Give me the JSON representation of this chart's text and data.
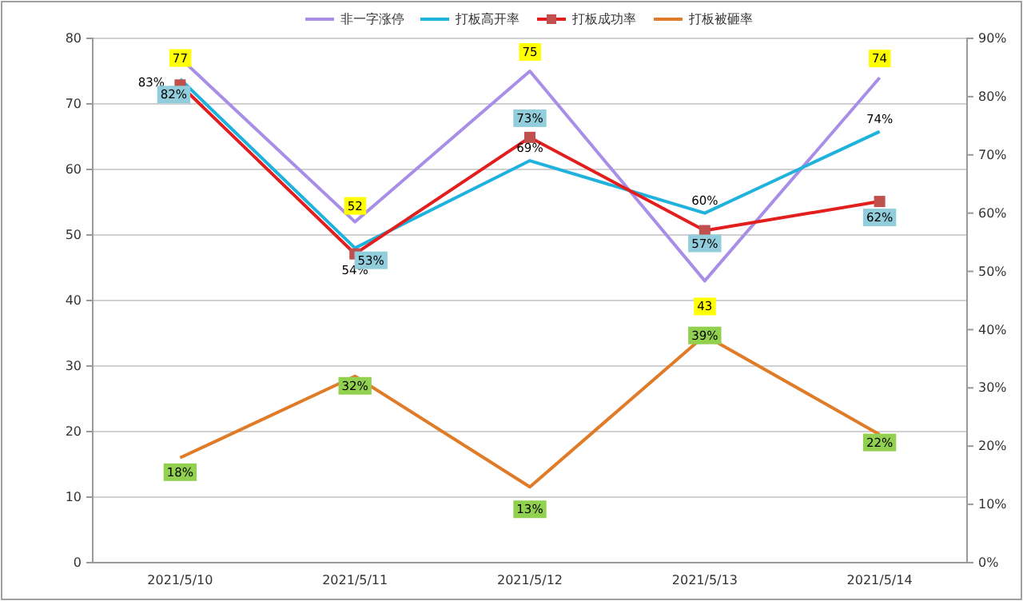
{
  "chart_data": {
    "type": "line",
    "categories": [
      "2021/5/10",
      "2021/5/11",
      "2021/5/12",
      "2021/5/13",
      "2021/5/14"
    ],
    "series": [
      {
        "name": "非一字涨停",
        "color": "#a98ee8",
        "values": [
          77,
          52,
          75,
          43,
          74
        ],
        "value_labels": [
          "77",
          "52",
          "75",
          "43",
          "74"
        ]
      },
      {
        "name": "打板高开率",
        "color": "#1fb2dc",
        "axis": "y2",
        "values": [
          83,
          54,
          69,
          60,
          74
        ],
        "value_labels": [
          "83%",
          "54%",
          "69%",
          "60%",
          "74%"
        ]
      },
      {
        "name": "打板成功率",
        "color": "#e31e1e",
        "axis": "y2",
        "marker": "square",
        "values": [
          82,
          53,
          73,
          57,
          62
        ],
        "value_labels": [
          "82%",
          "53%",
          "73%",
          "57%",
          "62%"
        ]
      },
      {
        "name": "打板被砸率",
        "color": "#e07b28",
        "axis": "y2",
        "values": [
          18,
          32,
          13,
          39,
          22
        ],
        "value_labels": [
          "18%",
          "32%",
          "13%",
          "39%",
          "22%"
        ]
      }
    ],
    "ylim": [
      0,
      80
    ],
    "yticks": [
      0,
      10,
      20,
      30,
      40,
      50,
      60,
      70,
      80
    ],
    "y2lim": [
      0,
      90
    ],
    "y2ticks": [
      {
        "value": 0,
        "label": "0%"
      },
      {
        "value": 10,
        "label": "10%"
      },
      {
        "value": 20,
        "label": "20%"
      },
      {
        "value": 30,
        "label": "30%"
      },
      {
        "value": 40,
        "label": "40%"
      },
      {
        "value": 50,
        "label": "50%"
      },
      {
        "value": 60,
        "label": "60%"
      },
      {
        "value": 70,
        "label": "70%"
      },
      {
        "value": 80,
        "label": "80%"
      },
      {
        "value": 90,
        "label": "90%"
      }
    ],
    "grid": "y",
    "legend": "top",
    "marker": "none",
    "line_style": "solid"
  }
}
